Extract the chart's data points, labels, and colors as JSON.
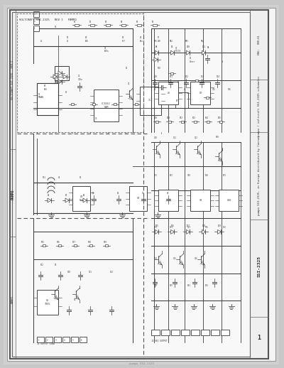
{
  "fig_width": 4.0,
  "fig_height": 5.18,
  "dpi": 100,
  "bg_color": "#c8c8c8",
  "paper_color": "#f2f2f2",
  "line_color": "#383838",
  "text_color": "#303030",
  "schematic_gray": "#888888"
}
